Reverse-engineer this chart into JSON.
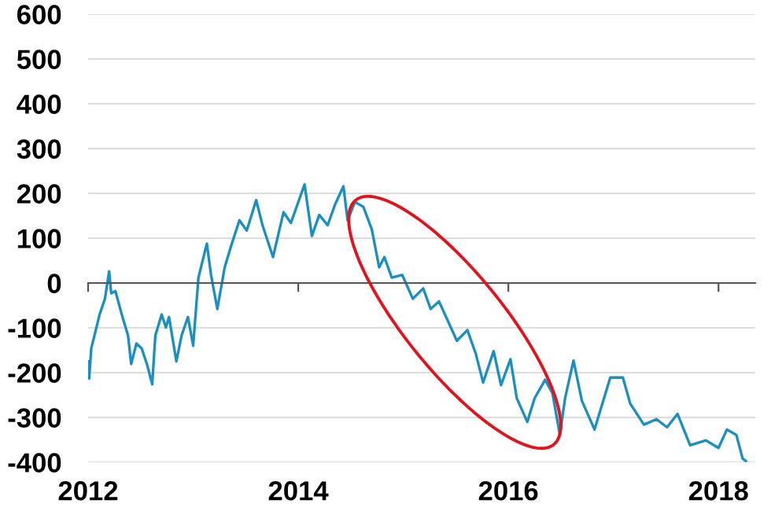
{
  "chart_data": {
    "type": "line",
    "color": "#1b8fbf",
    "x": [
      2012.0,
      2012.01,
      2012.03,
      2012.11,
      2012.16,
      2012.2,
      2012.22,
      2012.26,
      2012.32,
      2012.38,
      2012.41,
      2012.46,
      2012.51,
      2012.56,
      2012.61,
      2012.64,
      2012.7,
      2012.74,
      2012.77,
      2012.84,
      2012.89,
      2012.95,
      2013.0,
      2013.05,
      2013.13,
      2013.17,
      2013.23,
      2013.3,
      2013.36,
      2013.44,
      2013.51,
      2013.6,
      2013.66,
      2013.76,
      2013.86,
      2013.93,
      2014.06,
      2014.13,
      2014.2,
      2014.28,
      2014.35,
      2014.43,
      2014.47,
      2014.54,
      2014.62,
      2014.7,
      2014.77,
      2014.82,
      2014.89,
      2014.99,
      2015.09,
      2015.19,
      2015.26,
      2015.34,
      2015.51,
      2015.61,
      2015.69,
      2015.76,
      2015.86,
      2015.93,
      2016.02,
      2016.08,
      2016.18,
      2016.25,
      2016.35,
      2016.42,
      2016.49,
      2016.54,
      2016.62,
      2016.7,
      2016.82,
      2016.97,
      2017.09,
      2017.16,
      2017.29,
      2017.41,
      2017.51,
      2017.61,
      2017.73,
      2017.88,
      2018.0,
      2018.08,
      2018.17,
      2018.23,
      2018.26
    ],
    "values": [
      -175,
      -213,
      -146,
      -70,
      -35,
      26,
      -23,
      -18,
      -70,
      -117,
      -181,
      -135,
      -146,
      -181,
      -226,
      -117,
      -70,
      -99,
      -76,
      -175,
      -117,
      -76,
      -140,
      12,
      88,
      18,
      -58,
      35,
      82,
      140,
      117,
      185,
      129,
      58,
      158,
      134,
      220,
      105,
      152,
      129,
      175,
      216,
      140,
      181,
      170,
      120,
      35,
      58,
      12,
      18,
      -35,
      -12,
      -58,
      -41,
      -129,
      -105,
      -158,
      -222,
      -152,
      -228,
      -170,
      -257,
      -310,
      -257,
      -216,
      -246,
      -339,
      -257,
      -173,
      -263,
      -327,
      -211,
      -211,
      -269,
      -316,
      -304,
      -322,
      -292,
      -362,
      -351,
      -368,
      -327,
      -339,
      -392,
      -397
    ],
    "xlim": [
      2012,
      2018.35
    ],
    "xticks": [
      2012,
      2014,
      2016,
      2018
    ],
    "ylim": [
      -400,
      600
    ],
    "yticks": [
      -400,
      -300,
      -200,
      -100,
      0,
      100,
      200,
      300,
      400,
      500,
      600
    ],
    "grid": "y",
    "legend": false
  }
}
